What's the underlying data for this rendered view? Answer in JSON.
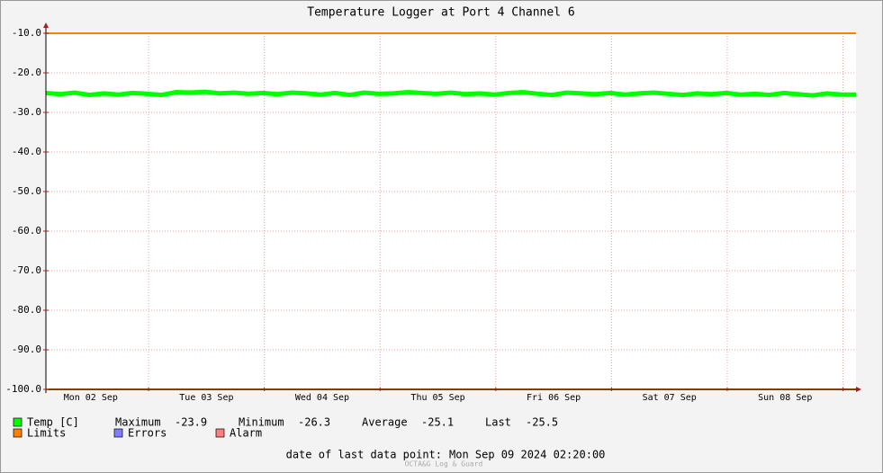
{
  "chart_data": {
    "type": "line",
    "title": "Temperature Logger at Port 4 Channel 6",
    "xlim": [
      0,
      168
    ],
    "xticks": [
      {
        "value": 9.3,
        "label": "Mon 02 Sep"
      },
      {
        "value": 33.3,
        "label": "Tue 03 Sep"
      },
      {
        "value": 57.3,
        "label": "Wed 04 Sep"
      },
      {
        "value": 81.3,
        "label": "Thu 05 Sep"
      },
      {
        "value": 105.3,
        "label": "Fri 06 Sep"
      },
      {
        "value": 129.3,
        "label": "Sat 07 Sep"
      },
      {
        "value": 153.3,
        "label": "Sun 08 Sep"
      }
    ],
    "day_lines": [
      21.3,
      45.3,
      69.3,
      93.3,
      117.3,
      141.3,
      165.3
    ],
    "ylim": [
      -100,
      -10
    ],
    "yticks": [
      {
        "value": -10,
        "label": "-10.0"
      },
      {
        "value": -20,
        "label": "-20.0"
      },
      {
        "value": -30,
        "label": "-30.0"
      },
      {
        "value": -40,
        "label": "-40.0"
      },
      {
        "value": -50,
        "label": "-50.0"
      },
      {
        "value": -60,
        "label": "-60.0"
      },
      {
        "value": -70,
        "label": "-70.0"
      },
      {
        "value": -80,
        "label": "-80.0"
      },
      {
        "value": -90,
        "label": "-90.0"
      },
      {
        "value": -100,
        "label": "-100.0"
      }
    ],
    "grid": true,
    "x": [
      0,
      3,
      6,
      9,
      12,
      15,
      18,
      21,
      24,
      27,
      30,
      33,
      36,
      39,
      42,
      45,
      48,
      51,
      54,
      57,
      60,
      63,
      66,
      69,
      72,
      75,
      78,
      81,
      84,
      87,
      90,
      93,
      96,
      99,
      102,
      105,
      108,
      111,
      114,
      117,
      120,
      123,
      126,
      129,
      132,
      135,
      138,
      141,
      144,
      147,
      150,
      153,
      156,
      159,
      162,
      165,
      168
    ],
    "series": [
      {
        "name": "Temp [C]",
        "color": "#00ff00",
        "values": [
          -25.1,
          -25.4,
          -25.0,
          -25.6,
          -25.2,
          -25.5,
          -25.1,
          -25.3,
          -25.6,
          -24.9,
          -25.0,
          -24.8,
          -25.2,
          -25.0,
          -25.3,
          -25.1,
          -25.4,
          -25.0,
          -25.2,
          -25.5,
          -25.1,
          -25.6,
          -25.0,
          -25.3,
          -25.2,
          -24.9,
          -25.1,
          -25.3,
          -25.0,
          -25.4,
          -25.2,
          -25.5,
          -25.1,
          -24.9,
          -25.3,
          -25.6,
          -25.0,
          -25.2,
          -25.4,
          -25.1,
          -25.5,
          -25.2,
          -25.0,
          -25.3,
          -25.6,
          -25.2,
          -25.4,
          -25.1,
          -25.5,
          -25.3,
          -25.6,
          -25.1,
          -25.4,
          -25.7,
          -25.2,
          -25.5,
          -25.5
        ]
      }
    ],
    "limits": {
      "name": "Limits",
      "color": "#ff7f00",
      "values": [
        -10,
        -100
      ]
    },
    "legend": [
      {
        "name": "Errors",
        "color": "#7f7fff"
      },
      {
        "name": "Alarm",
        "color": "#ff7f7f"
      }
    ],
    "stats": [
      {
        "label": "Maximum",
        "value": -23.9
      },
      {
        "label": "Minimum",
        "value": -26.3
      },
      {
        "label": "Average",
        "value": -25.1
      },
      {
        "label": "Last",
        "value": -25.5
      }
    ],
    "footer_label": "date of last data point:",
    "footer_date": "Mon Sep 09 2024 02:20:00",
    "watermark": "OCTA&G Log & Guard"
  }
}
